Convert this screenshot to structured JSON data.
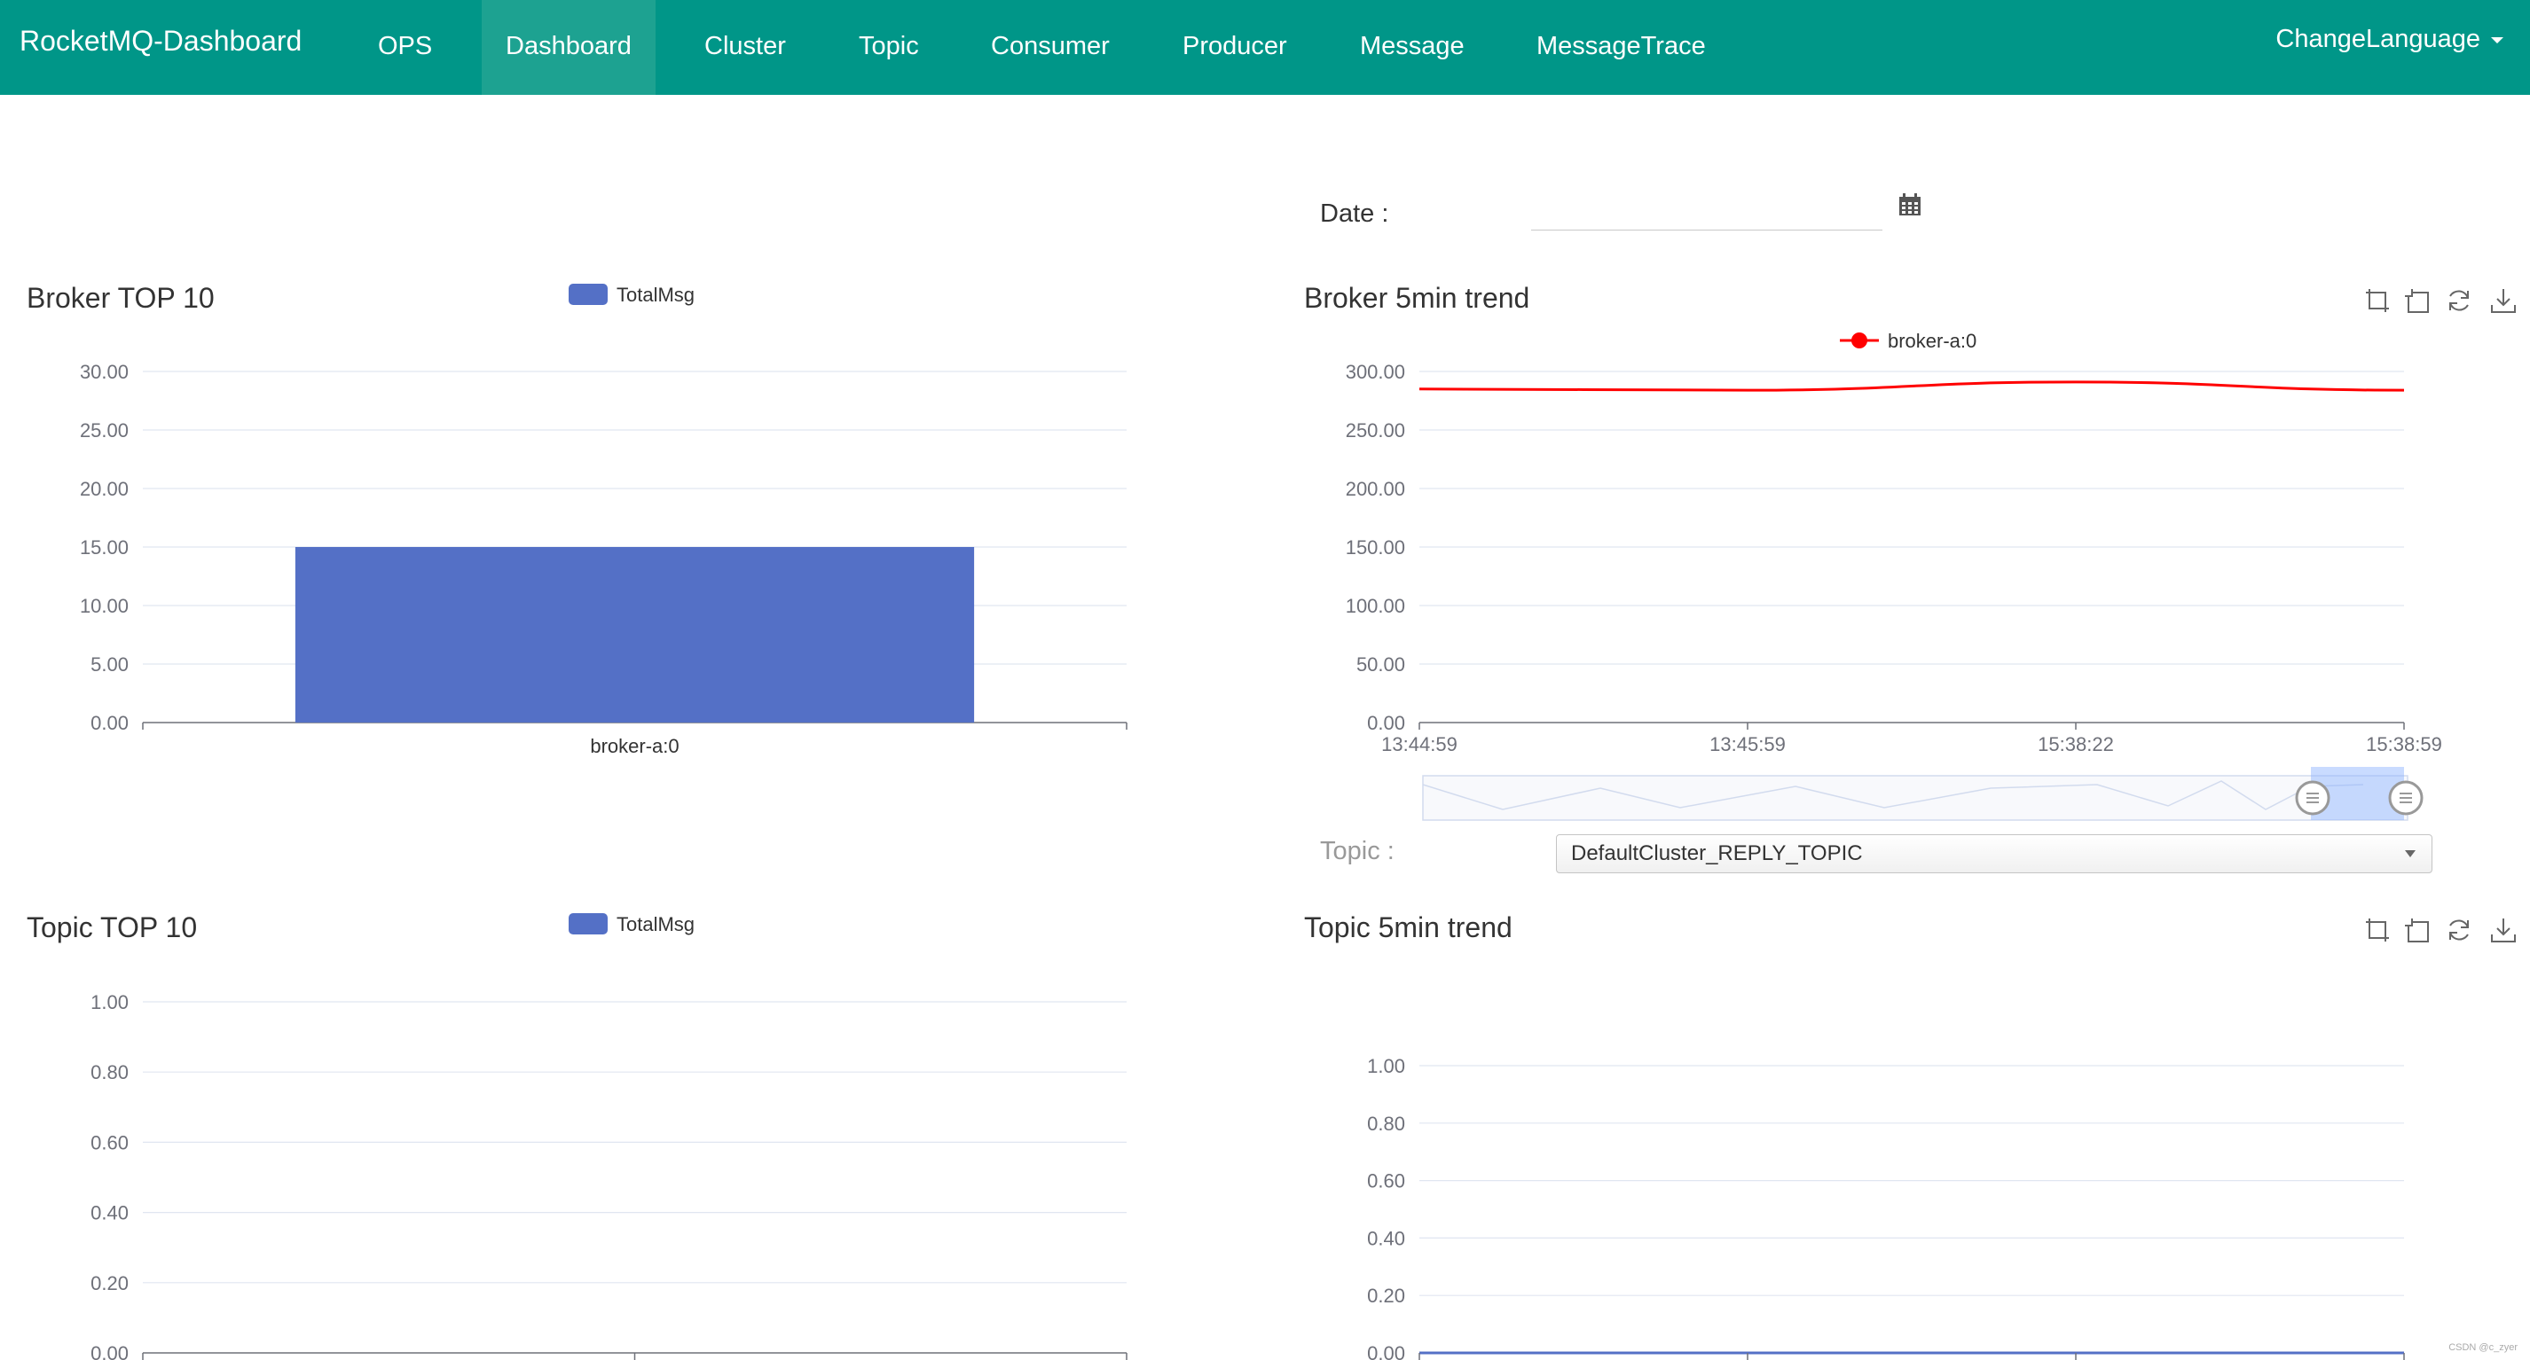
{
  "navbar": {
    "brand": "RocketMQ-Dashboard",
    "items": [
      {
        "label": "OPS",
        "active": false
      },
      {
        "label": "Dashboard",
        "active": true
      },
      {
        "label": "Cluster",
        "active": false
      },
      {
        "label": "Topic",
        "active": false
      },
      {
        "label": "Consumer",
        "active": false
      },
      {
        "label": "Producer",
        "active": false
      },
      {
        "label": "Message",
        "active": false
      },
      {
        "label": "MessageTrace",
        "active": false
      }
    ],
    "language_label": "ChangeLanguage",
    "color": "#009688"
  },
  "date_filter": {
    "label": "Date :",
    "value": "",
    "icon": "calendar-icon"
  },
  "topic_filter": {
    "label": "Topic :",
    "selected": "DefaultCluster_REPLY_TOPIC"
  },
  "toolbox_icons": [
    "zoom-select-icon",
    "zoom-reset-icon",
    "restore-icon",
    "download-icon"
  ],
  "watermark": "CSDN @c_zyer",
  "chart_data": [
    {
      "id": "broker_top10",
      "type": "bar",
      "title": "Broker TOP 10",
      "legend": [
        "TotalMsg"
      ],
      "legend_position": "top-center",
      "categories": [
        "broker-a:0"
      ],
      "series": [
        {
          "name": "TotalMsg",
          "values": [
            15
          ],
          "color": "#5470c6"
        }
      ],
      "ylim": [
        0,
        30
      ],
      "yticks": [
        "0.00",
        "5.00",
        "10.00",
        "15.00",
        "20.00",
        "25.00",
        "30.00"
      ],
      "grid": true
    },
    {
      "id": "broker_5min_trend",
      "type": "line",
      "title": "Broker 5min trend",
      "legend": [
        "broker-a:0"
      ],
      "legend_position": "top-center",
      "x": [
        "13:44:59",
        "13:45:59",
        "15:38:22",
        "15:38:59"
      ],
      "series": [
        {
          "name": "broker-a:0",
          "values": [
            285,
            284,
            291,
            284
          ],
          "color": "#ff0000"
        }
      ],
      "ylim": [
        0,
        300
      ],
      "yticks": [
        "0.00",
        "50.00",
        "100.00",
        "150.00",
        "200.00",
        "250.00",
        "300.00"
      ],
      "grid": true,
      "data_zoom": true
    },
    {
      "id": "topic_top10",
      "type": "bar",
      "title": "Topic TOP 10",
      "legend": [
        "TotalMsg"
      ],
      "legend_position": "top-center",
      "categories": [],
      "series": [
        {
          "name": "TotalMsg",
          "values": [],
          "color": "#5470c6"
        }
      ],
      "ylim": [
        0,
        1
      ],
      "yticks": [
        "0.00",
        "0.20",
        "0.40",
        "0.60",
        "0.80",
        "1.00"
      ],
      "grid": true
    },
    {
      "id": "topic_5min_trend",
      "type": "line",
      "title": "Topic 5min trend",
      "legend": [],
      "x": [],
      "series": [
        {
          "name": "",
          "values": [],
          "color": "#5470c6"
        }
      ],
      "ylim": [
        0,
        1
      ],
      "yticks": [
        "0.00",
        "0.20",
        "0.40",
        "0.60",
        "0.80",
        "1.00"
      ],
      "grid": true
    }
  ]
}
